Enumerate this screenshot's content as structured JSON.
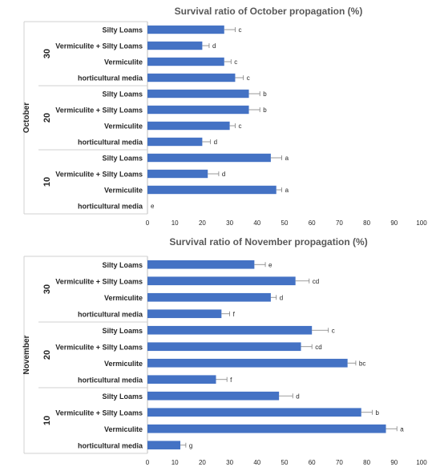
{
  "colors": {
    "bar": "#4472c4",
    "axis": "#bfbfbf",
    "divider": "#d0d0d0",
    "text": "#262626",
    "title": "#595959",
    "errorbar": "#7f7f7f"
  },
  "chart_data": [
    {
      "type": "bar",
      "orientation": "horizontal",
      "title": "Survival ratio of October propagation (%)",
      "outer_group": "October",
      "xlim": [
        0,
        100
      ],
      "x_ticks": [
        "0",
        "10",
        "20",
        "30",
        "40",
        "50",
        "60",
        "70",
        "80",
        "90",
        "100"
      ],
      "grid": false,
      "groups": [
        {
          "label": "30",
          "bars": [
            {
              "category": "Silty Loams",
              "value": 28,
              "error": 4,
              "letter": "c"
            },
            {
              "category": "Vermiculite + Silty Loams",
              "value": 20,
              "error": 2.5,
              "letter": "d"
            },
            {
              "category": "Vermiculite",
              "value": 28,
              "error": 2.5,
              "letter": "c"
            },
            {
              "category": "horticultural media",
              "value": 32,
              "error": 3,
              "letter": "c"
            }
          ]
        },
        {
          "label": "20",
          "bars": [
            {
              "category": "Silty Loams",
              "value": 37,
              "error": 4,
              "letter": "b"
            },
            {
              "category": "Vermiculite + Silty Loams",
              "value": 37,
              "error": 4,
              "letter": "b"
            },
            {
              "category": "Vermiculite",
              "value": 30,
              "error": 2,
              "letter": "c"
            },
            {
              "category": "horticultural media",
              "value": 20,
              "error": 3,
              "letter": "d"
            }
          ]
        },
        {
          "label": "10",
          "bars": [
            {
              "category": "Silty Loams",
              "value": 45,
              "error": 4,
              "letter": "a"
            },
            {
              "category": "Vermiculite + Silty Loams",
              "value": 22,
              "error": 4,
              "letter": "d"
            },
            {
              "category": "Vermiculite",
              "value": 47,
              "error": 2,
              "letter": "a"
            },
            {
              "category": "horticultural media",
              "value": 0,
              "error": 0,
              "letter": "e"
            }
          ]
        }
      ]
    },
    {
      "type": "bar",
      "orientation": "horizontal",
      "title": "Survival ratio of November propagation (%)",
      "outer_group": "November",
      "xlim": [
        0,
        100
      ],
      "x_ticks": [
        "0",
        "10",
        "20",
        "30",
        "40",
        "50",
        "60",
        "70",
        "80",
        "90",
        "100"
      ],
      "grid": false,
      "groups": [
        {
          "label": "30",
          "bars": [
            {
              "category": "Silty Loams",
              "value": 39,
              "error": 4,
              "letter": "e"
            },
            {
              "category": "Vermiculite + Silty Loams",
              "value": 54,
              "error": 5,
              "letter": "cd"
            },
            {
              "category": "Vermiculite",
              "value": 45,
              "error": 2,
              "letter": "d"
            },
            {
              "category": "horticultural media",
              "value": 27,
              "error": 3,
              "letter": "f"
            }
          ]
        },
        {
          "label": "20",
          "bars": [
            {
              "category": "Silty Loams",
              "value": 60,
              "error": 6,
              "letter": "c"
            },
            {
              "category": "Vermiculite + Silty Loams",
              "value": 56,
              "error": 4,
              "letter": "cd"
            },
            {
              "category": "Vermiculite",
              "value": 73,
              "error": 3,
              "letter": "bc"
            },
            {
              "category": "horticultural media",
              "value": 25,
              "error": 4,
              "letter": "f"
            }
          ]
        },
        {
          "label": "10",
          "bars": [
            {
              "category": "Silty Loams",
              "value": 48,
              "error": 5,
              "letter": "d"
            },
            {
              "category": "Vermiculite + Silty Loams",
              "value": 78,
              "error": 4,
              "letter": "b"
            },
            {
              "category": "Vermiculite",
              "value": 87,
              "error": 4,
              "letter": "a"
            },
            {
              "category": "horticultural media",
              "value": 12,
              "error": 2,
              "letter": "g"
            }
          ]
        }
      ]
    }
  ]
}
